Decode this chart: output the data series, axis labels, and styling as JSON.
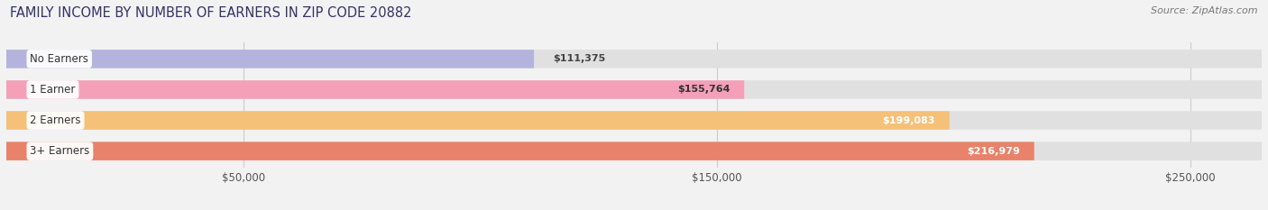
{
  "title": "FAMILY INCOME BY NUMBER OF EARNERS IN ZIP CODE 20882",
  "source": "Source: ZipAtlas.com",
  "categories": [
    "No Earners",
    "1 Earner",
    "2 Earners",
    "3+ Earners"
  ],
  "values": [
    111375,
    155764,
    199083,
    216979
  ],
  "bar_colors": [
    "#b3b3de",
    "#f4a0b8",
    "#f5c078",
    "#e8826a"
  ],
  "value_labels": [
    "$111,375",
    "$155,764",
    "$199,083",
    "$216,979"
  ],
  "value_inside": [
    false,
    true,
    true,
    true
  ],
  "value_colors_inside": [
    "#333333",
    "#333333",
    "white",
    "white"
  ],
  "x_ticks": [
    50000,
    150000,
    250000
  ],
  "x_tick_labels": [
    "$50,000",
    "$150,000",
    "$250,000"
  ],
  "xlim_max": 265000,
  "background_color": "#f2f2f2",
  "bar_bg_color": "#e8e8e8",
  "title_fontsize": 10.5,
  "source_fontsize": 8,
  "label_fontsize": 8.5,
  "value_fontsize": 8,
  "tick_fontsize": 8.5
}
